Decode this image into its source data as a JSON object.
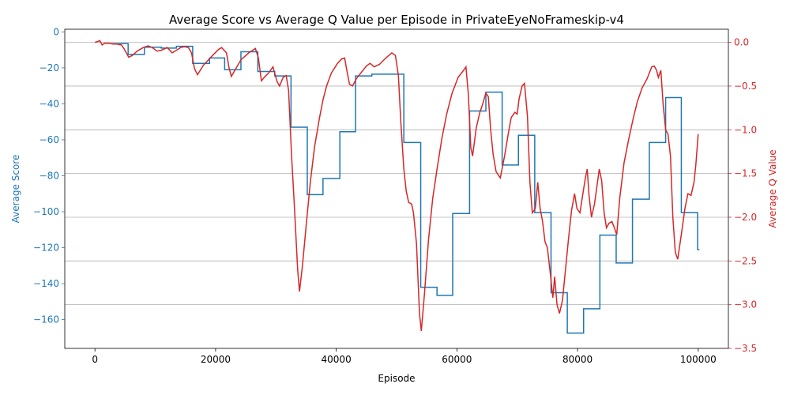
{
  "chart_data": {
    "type": "line",
    "title": "Average Score vs Average Q Value per Episode in PrivateEyeNoFrameskip-v4",
    "xlabel": "Episode",
    "ylabel_left": "Average Score",
    "ylabel_right": "Average Q Value",
    "xlim": [
      -5000,
      105000
    ],
    "ylim_left": [
      -176,
      1.5
    ],
    "ylim_right": [
      -3.5,
      0.15
    ],
    "grid": "horizontal lines at right-axis ticks",
    "x_ticks": [
      0,
      20000,
      40000,
      60000,
      80000,
      100000
    ],
    "x_tick_labels": [
      "0",
      "20000",
      "40000",
      "60000",
      "80000",
      "100000"
    ],
    "y_left_ticks": [
      0,
      -20,
      -40,
      -60,
      -80,
      -100,
      -120,
      -140,
      -160
    ],
    "y_left_tick_labels": [
      "0",
      "−20",
      "−40",
      "−60",
      "−80",
      "−100",
      "−120",
      "−140",
      "−160"
    ],
    "y_right_ticks": [
      0.0,
      -0.5,
      -1.0,
      -1.5,
      -2.0,
      -2.5,
      -3.0,
      -3.5
    ],
    "y_right_tick_labels": [
      "0.0",
      "−0.5",
      "−1.0",
      "−1.5",
      "−2.0",
      "−2.5",
      "−3.0",
      "−3.5"
    ],
    "colors": {
      "score": "#1f77b4",
      "q": "#d62728",
      "grid": "#b0b0b0",
      "axis": "#000000"
    },
    "series": [
      {
        "axis": "left",
        "steps": [
          [
            2700,
            -6.5
          ],
          [
            5500,
            -12.5
          ],
          [
            8200,
            -8.5
          ],
          [
            11000,
            -9
          ],
          [
            13500,
            -8
          ],
          [
            16200,
            -17.5
          ],
          [
            19000,
            -14.5
          ],
          [
            21500,
            -21
          ],
          [
            24200,
            -11
          ],
          [
            27000,
            -22
          ],
          [
            29800,
            -24.5
          ],
          [
            32500,
            -53
          ],
          [
            35200,
            -90.5
          ],
          [
            37800,
            -81.5
          ],
          [
            40600,
            -55.5
          ],
          [
            43200,
            -24.5
          ],
          [
            45900,
            -23.5
          ],
          [
            51200,
            -61.5
          ],
          [
            54000,
            -142
          ],
          [
            56700,
            -146.5
          ],
          [
            59300,
            -101
          ],
          [
            62100,
            -44
          ],
          [
            64800,
            -33.5
          ],
          [
            67500,
            -74
          ],
          [
            70200,
            -57.5
          ],
          [
            72900,
            -100.5
          ],
          [
            75600,
            -145
          ],
          [
            78300,
            -167.5
          ],
          [
            81000,
            -154
          ],
          [
            83700,
            -113
          ],
          [
            86400,
            -128.5
          ],
          [
            89100,
            -93
          ],
          [
            91900,
            -61.5
          ],
          [
            94600,
            -36.5
          ],
          [
            97200,
            -100.5
          ],
          [
            99900,
            -121
          ]
        ],
        "end_x": 100200
      },
      {
        "axis": "right",
        "points": [
          [
            0,
            0.0
          ],
          [
            500,
            0.01
          ],
          [
            800,
            0.02
          ],
          [
            1200,
            -0.03
          ],
          [
            1600,
            -0.01
          ],
          [
            2200,
            -0.01
          ],
          [
            3000,
            -0.02
          ],
          [
            3600,
            -0.02
          ],
          [
            4400,
            -0.03
          ],
          [
            4800,
            -0.07
          ],
          [
            5200,
            -0.12
          ],
          [
            5600,
            -0.17
          ],
          [
            6200,
            -0.15
          ],
          [
            7000,
            -0.1
          ],
          [
            8000,
            -0.06
          ],
          [
            8800,
            -0.04
          ],
          [
            9500,
            -0.06
          ],
          [
            10300,
            -0.1
          ],
          [
            11000,
            -0.09
          ],
          [
            12000,
            -0.06
          ],
          [
            12800,
            -0.12
          ],
          [
            13500,
            -0.09
          ],
          [
            14200,
            -0.06
          ],
          [
            14800,
            -0.05
          ],
          [
            15500,
            -0.06
          ],
          [
            16000,
            -0.12
          ],
          [
            16500,
            -0.3
          ],
          [
            17000,
            -0.37
          ],
          [
            18000,
            -0.26
          ],
          [
            19500,
            -0.15
          ],
          [
            20500,
            -0.08
          ],
          [
            21000,
            -0.06
          ],
          [
            21800,
            -0.12
          ],
          [
            22200,
            -0.28
          ],
          [
            22600,
            -0.39
          ],
          [
            23200,
            -0.32
          ],
          [
            24200,
            -0.2
          ],
          [
            25500,
            -0.12
          ],
          [
            26600,
            -0.07
          ],
          [
            27100,
            -0.18
          ],
          [
            27600,
            -0.44
          ],
          [
            28200,
            -0.39
          ],
          [
            28800,
            -0.35
          ],
          [
            29500,
            -0.28
          ],
          [
            30200,
            -0.45
          ],
          [
            30600,
            -0.5
          ],
          [
            31200,
            -0.4
          ],
          [
            31700,
            -0.38
          ],
          [
            32100,
            -0.55
          ],
          [
            32600,
            -1.3
          ],
          [
            33000,
            -1.8
          ],
          [
            33600,
            -2.6
          ],
          [
            33900,
            -2.85
          ],
          [
            34400,
            -2.55
          ],
          [
            35000,
            -2.1
          ],
          [
            35700,
            -1.6
          ],
          [
            36400,
            -1.2
          ],
          [
            37200,
            -0.87
          ],
          [
            37800,
            -0.66
          ],
          [
            38400,
            -0.5
          ],
          [
            39200,
            -0.35
          ],
          [
            40200,
            -0.24
          ],
          [
            40900,
            -0.19
          ],
          [
            41400,
            -0.18
          ],
          [
            41700,
            -0.3
          ],
          [
            42200,
            -0.48
          ],
          [
            42700,
            -0.5
          ],
          [
            43300,
            -0.42
          ],
          [
            44200,
            -0.34
          ],
          [
            45000,
            -0.27
          ],
          [
            45600,
            -0.24
          ],
          [
            46300,
            -0.28
          ],
          [
            47200,
            -0.25
          ],
          [
            48200,
            -0.18
          ],
          [
            49200,
            -0.12
          ],
          [
            49800,
            -0.15
          ],
          [
            50300,
            -0.38
          ],
          [
            50700,
            -0.9
          ],
          [
            51200,
            -1.45
          ],
          [
            51600,
            -1.7
          ],
          [
            52000,
            -1.83
          ],
          [
            52500,
            -1.85
          ],
          [
            52800,
            -1.95
          ],
          [
            53300,
            -2.3
          ],
          [
            53800,
            -3.1
          ],
          [
            54100,
            -3.3
          ],
          [
            54600,
            -2.9
          ],
          [
            55300,
            -2.25
          ],
          [
            56000,
            -1.78
          ],
          [
            56700,
            -1.45
          ],
          [
            57500,
            -1.1
          ],
          [
            58300,
            -0.82
          ],
          [
            59200,
            -0.58
          ],
          [
            60200,
            -0.4
          ],
          [
            61100,
            -0.32
          ],
          [
            61500,
            -0.28
          ],
          [
            61900,
            -0.6
          ],
          [
            62300,
            -1.2
          ],
          [
            62600,
            -1.3
          ],
          [
            63200,
            -0.98
          ],
          [
            63800,
            -0.8
          ],
          [
            64300,
            -0.7
          ],
          [
            64800,
            -0.58
          ],
          [
            65200,
            -0.62
          ],
          [
            65600,
            -1.0
          ],
          [
            66000,
            -1.28
          ],
          [
            66500,
            -1.48
          ],
          [
            67200,
            -1.55
          ],
          [
            67900,
            -1.3
          ],
          [
            68500,
            -1.05
          ],
          [
            69000,
            -0.86
          ],
          [
            69600,
            -0.8
          ],
          [
            70000,
            -0.82
          ],
          [
            70300,
            -0.65
          ],
          [
            70800,
            -0.5
          ],
          [
            71200,
            -0.47
          ],
          [
            71700,
            -0.85
          ],
          [
            72100,
            -1.6
          ],
          [
            72500,
            -1.95
          ],
          [
            73000,
            -1.9
          ],
          [
            73400,
            -1.6
          ],
          [
            73800,
            -1.9
          ],
          [
            74200,
            -2.05
          ],
          [
            74600,
            -2.28
          ],
          [
            75000,
            -2.35
          ],
          [
            75500,
            -2.65
          ],
          [
            75900,
            -2.92
          ],
          [
            76200,
            -2.68
          ],
          [
            76600,
            -3.0
          ],
          [
            77000,
            -3.1
          ],
          [
            77500,
            -2.95
          ],
          [
            78000,
            -2.6
          ],
          [
            78500,
            -2.25
          ],
          [
            79000,
            -1.92
          ],
          [
            79500,
            -1.73
          ],
          [
            79900,
            -1.9
          ],
          [
            80400,
            -1.95
          ],
          [
            80900,
            -1.72
          ],
          [
            81300,
            -1.55
          ],
          [
            81600,
            -1.45
          ],
          [
            81900,
            -1.75
          ],
          [
            82300,
            -2.0
          ],
          [
            82800,
            -1.85
          ],
          [
            83300,
            -1.6
          ],
          [
            83600,
            -1.45
          ],
          [
            84000,
            -1.58
          ],
          [
            84400,
            -1.95
          ],
          [
            84800,
            -2.12
          ],
          [
            85200,
            -2.07
          ],
          [
            85700,
            -2.05
          ],
          [
            86100,
            -2.12
          ],
          [
            86500,
            -2.2
          ],
          [
            87000,
            -1.78
          ],
          [
            87700,
            -1.38
          ],
          [
            88500,
            -1.1
          ],
          [
            89200,
            -0.88
          ],
          [
            89900,
            -0.68
          ],
          [
            90700,
            -0.52
          ],
          [
            91500,
            -0.42
          ],
          [
            92300,
            -0.28
          ],
          [
            92700,
            -0.27
          ],
          [
            93100,
            -0.32
          ],
          [
            93400,
            -0.4
          ],
          [
            93800,
            -0.32
          ],
          [
            94200,
            -0.72
          ],
          [
            94600,
            -1.0
          ],
          [
            95000,
            -1.05
          ],
          [
            95400,
            -1.3
          ],
          [
            95800,
            -2.0
          ],
          [
            96200,
            -2.4
          ],
          [
            96600,
            -2.48
          ],
          [
            97200,
            -2.2
          ],
          [
            97800,
            -1.9
          ],
          [
            98300,
            -1.73
          ],
          [
            98800,
            -1.75
          ],
          [
            99300,
            -1.6
          ],
          [
            99600,
            -1.4
          ],
          [
            100000,
            -1.05
          ]
        ]
      }
    ]
  }
}
